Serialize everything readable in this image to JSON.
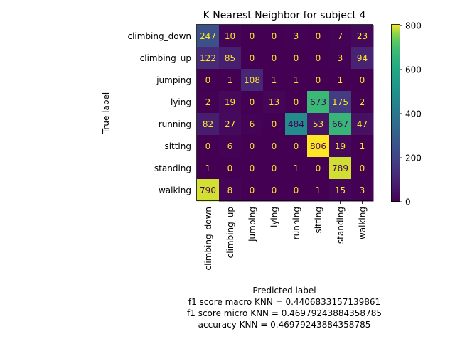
{
  "chart_data": {
    "type": "heatmap",
    "title": "K Nearest Neighbor for subject 4",
    "xlabel": "Predicted label",
    "ylabel": "True label",
    "labels": [
      "climbing_down",
      "climbing_up",
      "jumping",
      "lying",
      "running",
      "sitting",
      "standing",
      "walking"
    ],
    "matrix": [
      [
        247,
        10,
        0,
        0,
        3,
        0,
        7,
        23
      ],
      [
        122,
        85,
        0,
        0,
        0,
        0,
        3,
        94
      ],
      [
        0,
        1,
        108,
        1,
        1,
        0,
        1,
        0
      ],
      [
        2,
        19,
        0,
        13,
        0,
        673,
        175,
        2
      ],
      [
        82,
        27,
        6,
        0,
        484,
        53,
        667,
        47
      ],
      [
        0,
        6,
        0,
        0,
        0,
        806,
        19,
        1
      ],
      [
        1,
        0,
        0,
        0,
        1,
        0,
        789,
        0
      ],
      [
        790,
        8,
        0,
        0,
        0,
        1,
        15,
        3
      ]
    ],
    "colormap": "viridis",
    "color_range": [
      0,
      806
    ],
    "colorbar_ticks": [
      0,
      200,
      400,
      600,
      800
    ],
    "text_colors": {
      "low": "#fde725",
      "high": "#440154"
    },
    "grid": false
  },
  "metrics": [
    "f1 score macro KNN = 0.4406833157139861",
    "f1 score micro KNN = 0.46979243884358785",
    "accuracy KNN = 0.46979243884358785"
  ]
}
